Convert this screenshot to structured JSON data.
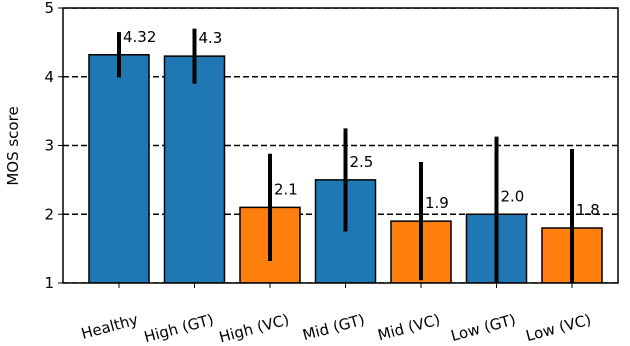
{
  "chart_data": {
    "type": "bar",
    "ylabel": "MOS score",
    "categories": [
      "Healthy",
      "High (GT)",
      "High (VC)",
      "Mid (GT)",
      "Mid (VC)",
      "Low (GT)",
      "Low (VC)"
    ],
    "values": [
      4.32,
      4.3,
      2.1,
      2.5,
      1.9,
      2.0,
      1.8
    ],
    "value_labels": [
      "4.32",
      "4.3",
      "2.1",
      "2.5",
      "1.9",
      "2.0",
      "1.8"
    ],
    "errors": [
      0.33,
      0.4,
      0.78,
      0.75,
      0.86,
      1.13,
      1.15
    ],
    "colors": [
      "#1f77b4",
      "#1f77b4",
      "#ff7f0e",
      "#1f77b4",
      "#ff7f0e",
      "#1f77b4",
      "#ff7f0e"
    ],
    "ylim": [
      1,
      5
    ],
    "yticks": [
      1,
      2,
      3,
      4,
      5
    ],
    "grid": true
  }
}
